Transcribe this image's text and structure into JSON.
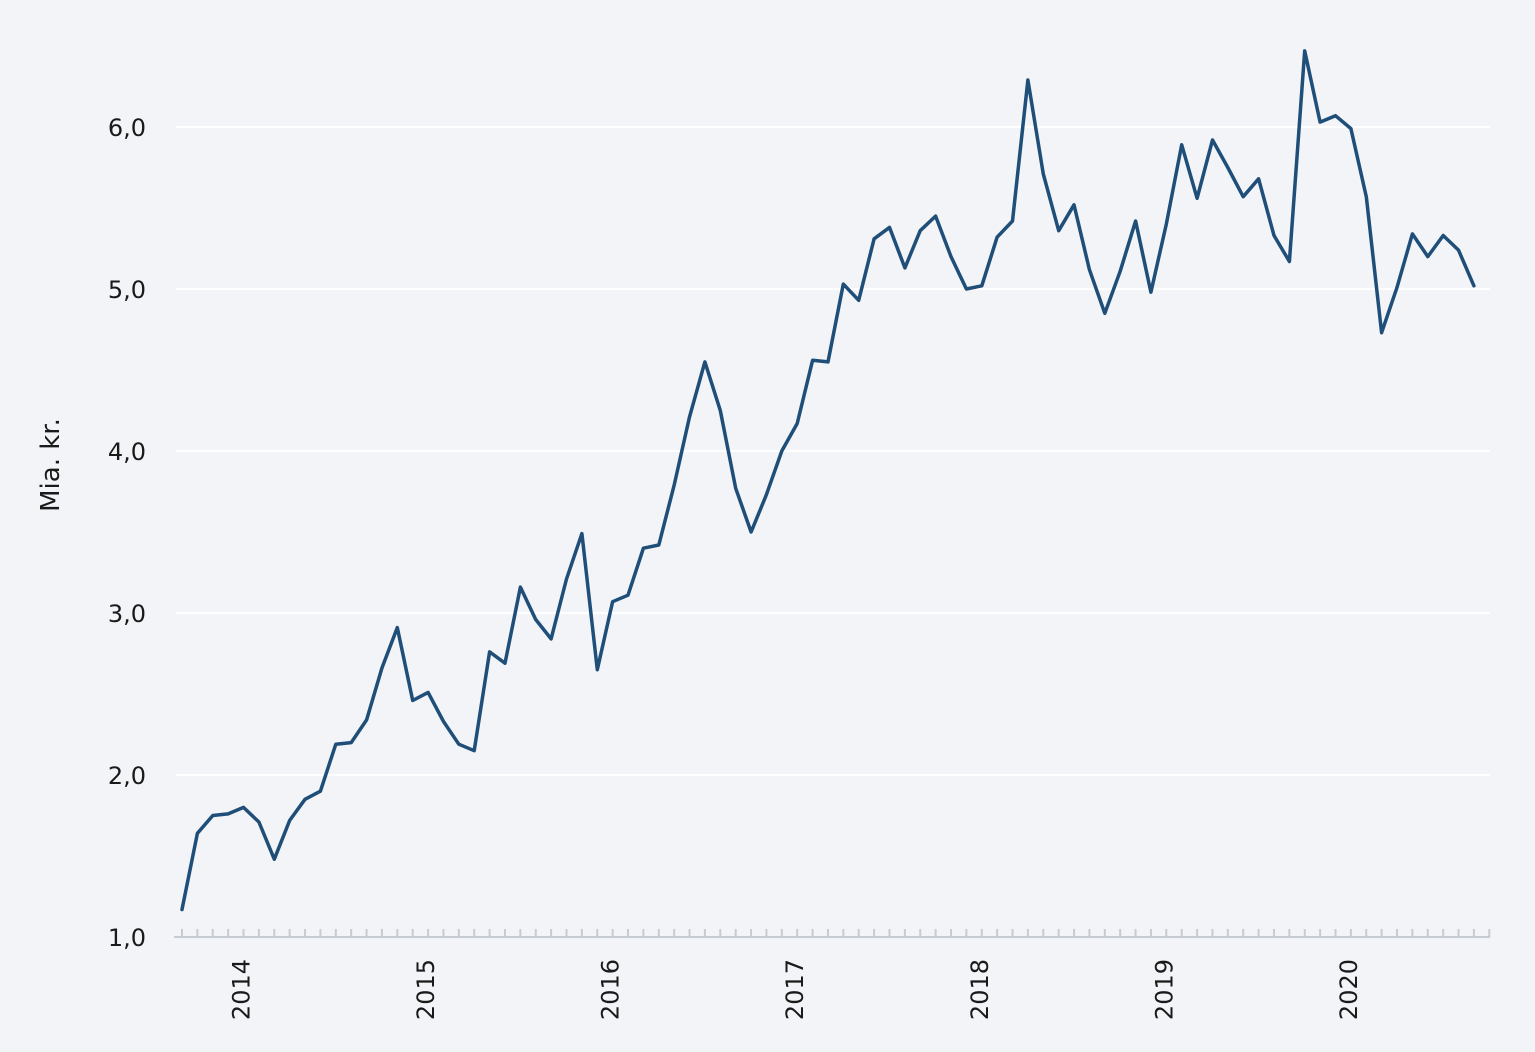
{
  "chart_data": {
    "type": "line",
    "ylabel": "Mia. kr.",
    "xlabel": "",
    "ylim": [
      1.0,
      6.5
    ],
    "y_ticks": [
      1.0,
      2.0,
      3.0,
      4.0,
      5.0,
      6.0
    ],
    "y_tick_labels": [
      "1,0",
      "2,0",
      "3,0",
      "4,0",
      "5,0",
      "6,0"
    ],
    "x_start": "2013-09",
    "x_end": "2020-09",
    "x_tick_labels": [
      "2014",
      "2015",
      "2016",
      "2017",
      "2018",
      "2019",
      "2020"
    ],
    "grid": true,
    "colors": {
      "background": "#f2f4f7",
      "line": "#1f4e79",
      "grid": "#ffffff"
    },
    "series": [
      {
        "values": [
          1.17,
          1.64,
          1.75,
          1.76,
          1.8,
          1.71,
          1.48,
          1.72,
          1.85,
          1.9,
          2.19,
          2.2,
          2.34,
          2.66,
          2.91,
          2.46,
          2.51,
          2.33,
          2.19,
          2.15,
          2.76,
          2.69,
          3.16,
          2.96,
          2.84,
          3.21,
          3.49,
          2.65,
          3.07,
          3.11,
          3.4,
          3.42,
          3.79,
          4.21,
          4.55,
          4.25,
          3.77,
          3.5,
          3.73,
          4.0,
          4.17,
          4.56,
          4.55,
          5.03,
          4.93,
          5.31,
          5.38,
          5.13,
          5.36,
          5.45,
          5.2,
          5.0,
          5.02,
          5.32,
          5.42,
          6.29,
          5.71,
          5.36,
          5.52,
          5.12,
          4.85,
          5.11,
          5.42,
          4.98,
          5.4,
          5.89,
          5.56,
          5.92,
          5.75,
          5.57,
          5.68,
          5.33,
          5.17,
          6.47,
          6.03,
          6.07,
          5.99,
          5.57,
          4.73,
          5.01,
          5.34,
          5.2,
          5.33,
          5.24,
          5.02
        ]
      }
    ]
  }
}
